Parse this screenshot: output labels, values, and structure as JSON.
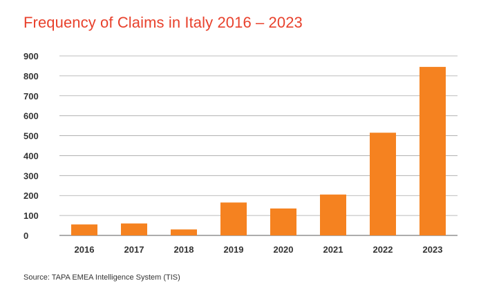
{
  "chart_data": {
    "type": "bar",
    "title": "Frequency of Claims in Italy 2016 – 2023",
    "categories": [
      "2016",
      "2017",
      "2018",
      "2019",
      "2020",
      "2021",
      "2022",
      "2023"
    ],
    "values": [
      55,
      60,
      30,
      165,
      135,
      205,
      515,
      845
    ],
    "ylim": [
      0,
      900
    ],
    "yticks": [
      0,
      100,
      200,
      300,
      400,
      500,
      600,
      700,
      800,
      900
    ],
    "xlabel": "",
    "ylabel": "",
    "grid": true,
    "bar_color": "#f58220",
    "source": "Source: TAPA EMEA Intelligence System (TIS)"
  }
}
